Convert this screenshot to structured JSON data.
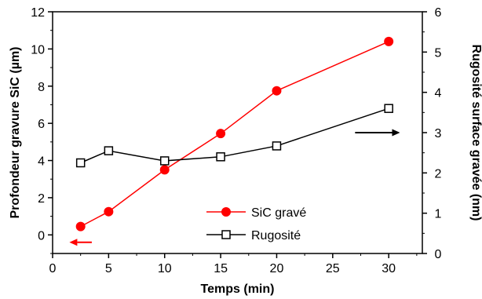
{
  "chart_data": {
    "type": "line",
    "x": [
      2.5,
      5,
      10,
      15,
      20,
      30
    ],
    "xlabel": "Temps (min)",
    "ylabel_left": "Profondeur gravure SiC (µm)",
    "ylabel_right": "Rugosité surface gravée (nm)",
    "xlim": [
      0,
      33
    ],
    "ylim_left": [
      -1,
      12
    ],
    "ylim_right": [
      0,
      6
    ],
    "x_ticks": [
      0,
      5,
      10,
      15,
      20,
      25,
      30
    ],
    "y_left_ticks": [
      0,
      2,
      4,
      6,
      8,
      10,
      12
    ],
    "y_right_ticks": [
      0,
      1,
      2,
      3,
      4,
      5,
      6
    ],
    "grid": false,
    "legend_position": "lower-center",
    "series": [
      {
        "name": "SiC gravé",
        "axis": "left",
        "marker": "filled-circle",
        "color": "#ff0000",
        "values": [
          0.45,
          1.25,
          3.5,
          5.45,
          7.75,
          10.4
        ]
      },
      {
        "name": "Rugosité",
        "axis": "right",
        "marker": "open-square",
        "color": "#000000",
        "values": [
          2.25,
          2.55,
          2.3,
          2.4,
          2.67,
          3.6
        ]
      }
    ],
    "annotations": [
      {
        "type": "arrow",
        "points_to": "left",
        "color": "#ff0000",
        "x": [
          3.5,
          1.5
        ],
        "y_left": -0.4
      },
      {
        "type": "arrow",
        "points_to": "right",
        "color": "#000000",
        "x": [
          27,
          31
        ],
        "y_right": 3.0
      }
    ]
  }
}
